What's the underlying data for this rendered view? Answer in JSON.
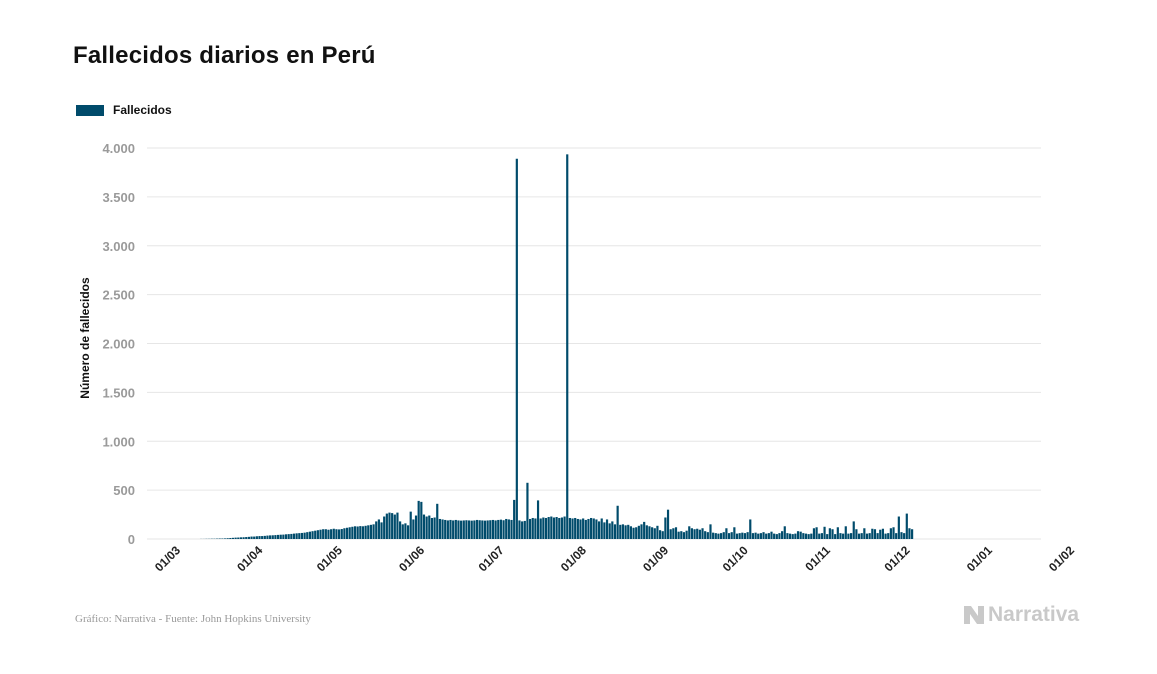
{
  "page": {
    "title": "Fallecidos diarios en Perú",
    "source": "Gráfico: Narrativa - Fuente: John Hopkins University",
    "brand": "Narrativa"
  },
  "colors": {
    "bar": "#004b6b",
    "grid": "#e6e6e6",
    "tick": "#9a9a9a",
    "brand": "#c9c9c9"
  },
  "chart_data": {
    "type": "bar",
    "title": "Fallecidos diarios en Perú",
    "xlabel": "",
    "ylabel": "Número de fallecidos",
    "ylim": [
      0,
      4000
    ],
    "yticks": [
      0,
      500,
      1000,
      1500,
      2000,
      2500,
      3000,
      3500,
      4000
    ],
    "ytick_labels": [
      "0",
      "500",
      "1.000",
      "1.500",
      "2.000",
      "2.500",
      "3.000",
      "3.500",
      "4.000"
    ],
    "xticks": [
      "01/03",
      "01/04",
      "01/05",
      "01/06",
      "01/07",
      "01/08",
      "01/09",
      "01/10",
      "01/11",
      "01/12",
      "01/01",
      "01/02"
    ],
    "x_range": [
      "2020-03-01",
      "2021-02-01"
    ],
    "grid": true,
    "legend_position": "top-left",
    "series": [
      {
        "name": "Fallecidos",
        "color": "#004b6b",
        "start_date": "2020-03-01",
        "values": [
          0,
          0,
          0,
          0,
          0,
          0,
          0,
          0,
          0,
          0,
          0,
          0,
          0,
          0,
          0,
          0,
          0,
          0,
          0,
          0,
          1,
          1,
          2,
          2,
          3,
          3,
          4,
          5,
          5,
          6,
          8,
          10,
          12,
          14,
          15,
          17,
          18,
          20,
          22,
          25,
          25,
          28,
          30,
          30,
          32,
          35,
          37,
          38,
          40,
          42,
          44,
          45,
          48,
          50,
          52,
          55,
          58,
          60,
          62,
          65,
          70,
          75,
          80,
          85,
          90,
          95,
          100,
          100,
          95,
          100,
          105,
          100,
          98,
          102,
          110,
          115,
          120,
          125,
          130,
          128,
          132,
          130,
          135,
          140,
          145,
          150,
          180,
          200,
          170,
          230,
          260,
          270,
          265,
          250,
          270,
          180,
          150,
          160,
          140,
          280,
          200,
          240,
          390,
          380,
          250,
          230,
          240,
          215,
          220,
          360,
          205,
          200,
          195,
          190,
          195,
          190,
          195,
          190,
          188,
          190,
          192,
          190,
          188,
          190,
          195,
          192,
          190,
          188,
          190,
          192,
          195,
          190,
          195,
          198,
          192,
          205,
          200,
          195,
          400,
          3890,
          190,
          180,
          185,
          575,
          205,
          215,
          210,
          395,
          210,
          220,
          215,
          225,
          230,
          220,
          225,
          215,
          220,
          230,
          3935,
          215,
          210,
          215,
          205,
          200,
          210,
          195,
          205,
          215,
          210,
          200,
          180,
          210,
          170,
          200,
          160,
          180,
          150,
          340,
          145,
          150,
          140,
          145,
          130,
          115,
          120,
          135,
          150,
          175,
          140,
          130,
          120,
          110,
          135,
          90,
          80,
          220,
          300,
          100,
          110,
          120,
          75,
          80,
          70,
          85,
          130,
          110,
          100,
          105,
          95,
          110,
          80,
          70,
          150,
          65,
          60,
          55,
          60,
          70,
          110,
          60,
          70,
          120,
          55,
          60,
          65,
          60,
          70,
          200,
          60,
          65,
          55,
          60,
          70,
          55,
          60,
          75,
          55,
          50,
          60,
          80,
          130,
          60,
          55,
          50,
          55,
          80,
          75,
          60,
          55,
          50,
          55,
          110,
          120,
          55,
          60,
          125,
          50,
          110,
          100,
          50,
          120,
          60,
          55,
          130,
          55,
          60,
          180,
          100,
          55,
          60,
          110,
          55,
          60,
          105,
          100,
          60,
          95,
          105,
          55,
          60,
          110,
          120,
          60,
          230,
          70,
          60,
          260,
          110,
          100,
          0,
          0,
          0,
          0,
          0,
          0,
          0,
          0,
          0,
          0,
          0,
          0
        ]
      }
    ]
  }
}
